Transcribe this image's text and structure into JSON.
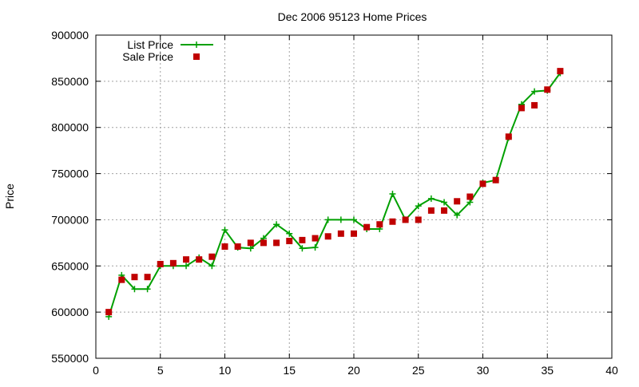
{
  "chart_data": {
    "type": "scatter",
    "title": "Dec 2006 95123 Home Prices",
    "xlabel": "",
    "ylabel": "Price",
    "xlim": [
      0,
      40
    ],
    "ylim": [
      550000,
      900000
    ],
    "xticks": [
      0,
      5,
      10,
      15,
      20,
      25,
      30,
      35,
      40
    ],
    "yticks": [
      550000,
      600000,
      650000,
      700000,
      750000,
      800000,
      850000,
      900000
    ],
    "grid": true,
    "legend_position": "top-left",
    "series": [
      {
        "name": "List Price",
        "style": "line-plus",
        "color": "#00a000",
        "x": [
          1,
          2,
          3,
          4,
          5,
          6,
          7,
          8,
          9,
          10,
          11,
          12,
          13,
          14,
          15,
          16,
          17,
          18,
          19,
          20,
          21,
          22,
          23,
          24,
          25,
          26,
          27,
          28,
          29,
          30,
          31,
          32,
          33,
          34,
          35,
          36
        ],
        "y": [
          595000,
          640000,
          625000,
          625000,
          650000,
          650000,
          650000,
          659000,
          650000,
          689000,
          670000,
          669000,
          680000,
          695000,
          685000,
          669000,
          670000,
          700000,
          700000,
          700000,
          690000,
          690000,
          728000,
          700000,
          715000,
          723000,
          719000,
          705000,
          719000,
          740000,
          743000,
          789000,
          825000,
          839000,
          840000,
          859000
        ]
      },
      {
        "name": "Sale Price",
        "style": "square",
        "color": "#c00000",
        "x": [
          1,
          2,
          3,
          4,
          5,
          6,
          7,
          8,
          9,
          10,
          11,
          12,
          13,
          14,
          15,
          16,
          17,
          18,
          19,
          20,
          21,
          22,
          23,
          24,
          25,
          26,
          27,
          28,
          29,
          30,
          31,
          32,
          33,
          34,
          35,
          36
        ],
        "y": [
          600000,
          635000,
          638000,
          638000,
          652000,
          653000,
          657000,
          657000,
          660000,
          671000,
          671000,
          675000,
          675000,
          675000,
          677000,
          678000,
          680000,
          682000,
          685000,
          685000,
          692000,
          695000,
          698000,
          700000,
          700000,
          710000,
          710000,
          720000,
          725000,
          739000,
          743000,
          790000,
          821000,
          824000,
          841000,
          861000
        ]
      }
    ]
  }
}
